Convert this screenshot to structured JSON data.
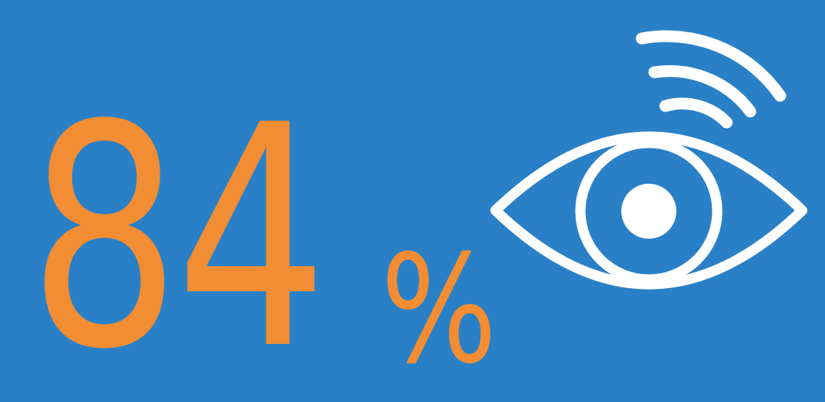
{
  "stat": {
    "value": "84",
    "unit": "%"
  },
  "graphic": {
    "icon": "eye-wifi-icon",
    "stroke_color": "#ffffff"
  },
  "colors": {
    "background": "#2a80c6",
    "accent": "#f28d33"
  }
}
